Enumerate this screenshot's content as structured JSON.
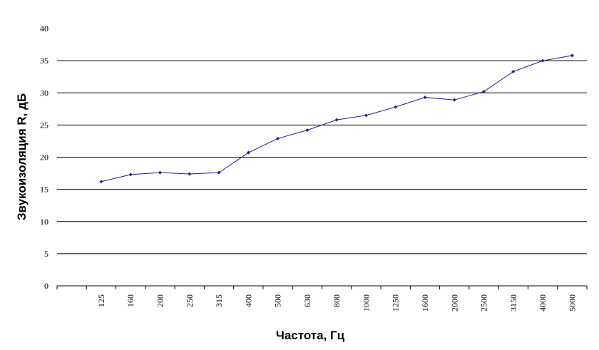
{
  "chart_data": {
    "type": "line",
    "xlabel": "Частота, Гц",
    "ylabel": "Звукоизоляция R, дБ",
    "categories": [
      null,
      "125",
      "160",
      "200",
      "250",
      "315",
      "400",
      "500",
      "630",
      "800",
      "1000",
      "1250",
      "1600",
      "2000",
      "2500",
      "3150",
      "4000",
      "5000"
    ],
    "series": [
      {
        "color": "#1f1f8a",
        "values": [
          null,
          16.2,
          17.3,
          17.6,
          17.4,
          17.6,
          20.7,
          22.9,
          24.2,
          25.8,
          26.5,
          27.8,
          29.3,
          28.9,
          30.2,
          33.3,
          35.0,
          35.8
        ]
      }
    ],
    "ylim": [
      0,
      40
    ],
    "yticks": [
      0,
      5,
      10,
      15,
      20,
      25,
      30,
      35,
      40
    ],
    "grid": true
  }
}
